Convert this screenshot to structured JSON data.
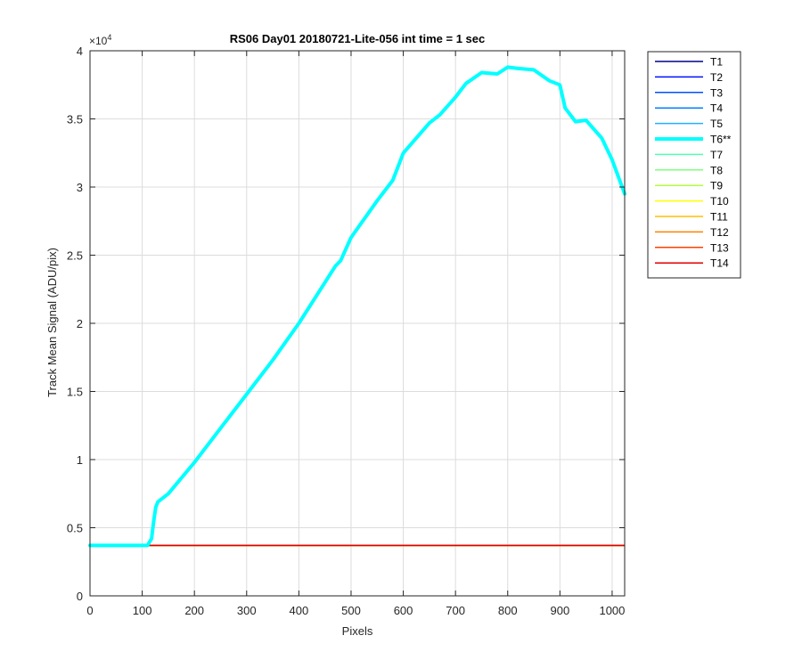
{
  "chart_data": {
    "type": "line",
    "title": "RS06 Day01 20180721-Lite-056 int time = 1 sec",
    "xlabel": "Pixels",
    "ylabel": "Track Mean Signal (ADU/pix)",
    "y_exponent_label": "×10",
    "y_exponent": "4",
    "xlim": [
      0,
      1024
    ],
    "ylim": [
      0,
      40000
    ],
    "xticks": [
      0,
      100,
      200,
      300,
      400,
      500,
      600,
      700,
      800,
      900,
      1000
    ],
    "yticks": [
      0,
      5000,
      10000,
      15000,
      20000,
      25000,
      30000,
      35000,
      40000
    ],
    "ytick_labels": [
      "0",
      "0.5",
      "1",
      "1.5",
      "2",
      "2.5",
      "3",
      "3.5",
      "4"
    ],
    "grid": true,
    "legend_position": "outside-right",
    "flat_level": 3700,
    "highlighted_series": "T6**",
    "series": [
      {
        "name": "T1",
        "color": "#00008f",
        "kind": "flat"
      },
      {
        "name": "T2",
        "color": "#0010ff",
        "kind": "flat"
      },
      {
        "name": "T3",
        "color": "#0050ff",
        "kind": "flat"
      },
      {
        "name": "T4",
        "color": "#0080ff",
        "kind": "flat"
      },
      {
        "name": "T5",
        "color": "#20b0ff",
        "kind": "flat"
      },
      {
        "name": "T6**",
        "color": "#00ffff",
        "kind": "data",
        "x": [
          0,
          110,
          118,
          122,
          126,
          130,
          150,
          200,
          250,
          300,
          350,
          400,
          450,
          470,
          480,
          500,
          550,
          580,
          600,
          650,
          670,
          700,
          720,
          750,
          780,
          800,
          820,
          850,
          880,
          900,
          910,
          930,
          950,
          980,
          1000,
          1024
        ],
        "y": [
          3700,
          3700,
          4200,
          5500,
          6500,
          6900,
          7500,
          9800,
          12300,
          14800,
          17300,
          20000,
          23000,
          24200,
          24600,
          26300,
          29000,
          30500,
          32500,
          34700,
          35300,
          36600,
          37600,
          38400,
          38300,
          38800,
          38700,
          38600,
          37800,
          37500,
          35800,
          34800,
          34900,
          33600,
          32000,
          29500
        ]
      },
      {
        "name": "T7",
        "color": "#50ffb0",
        "kind": "flat"
      },
      {
        "name": "T8",
        "color": "#80ff80",
        "kind": "flat"
      },
      {
        "name": "T9",
        "color": "#b0ff40",
        "kind": "flat"
      },
      {
        "name": "T10",
        "color": "#ffff00",
        "kind": "flat"
      },
      {
        "name": "T11",
        "color": "#ffc000",
        "kind": "flat"
      },
      {
        "name": "T12",
        "color": "#ff8000",
        "kind": "flat"
      },
      {
        "name": "T13",
        "color": "#ff4000",
        "kind": "flat"
      },
      {
        "name": "T14",
        "color": "#e00000",
        "kind": "flat"
      }
    ]
  }
}
